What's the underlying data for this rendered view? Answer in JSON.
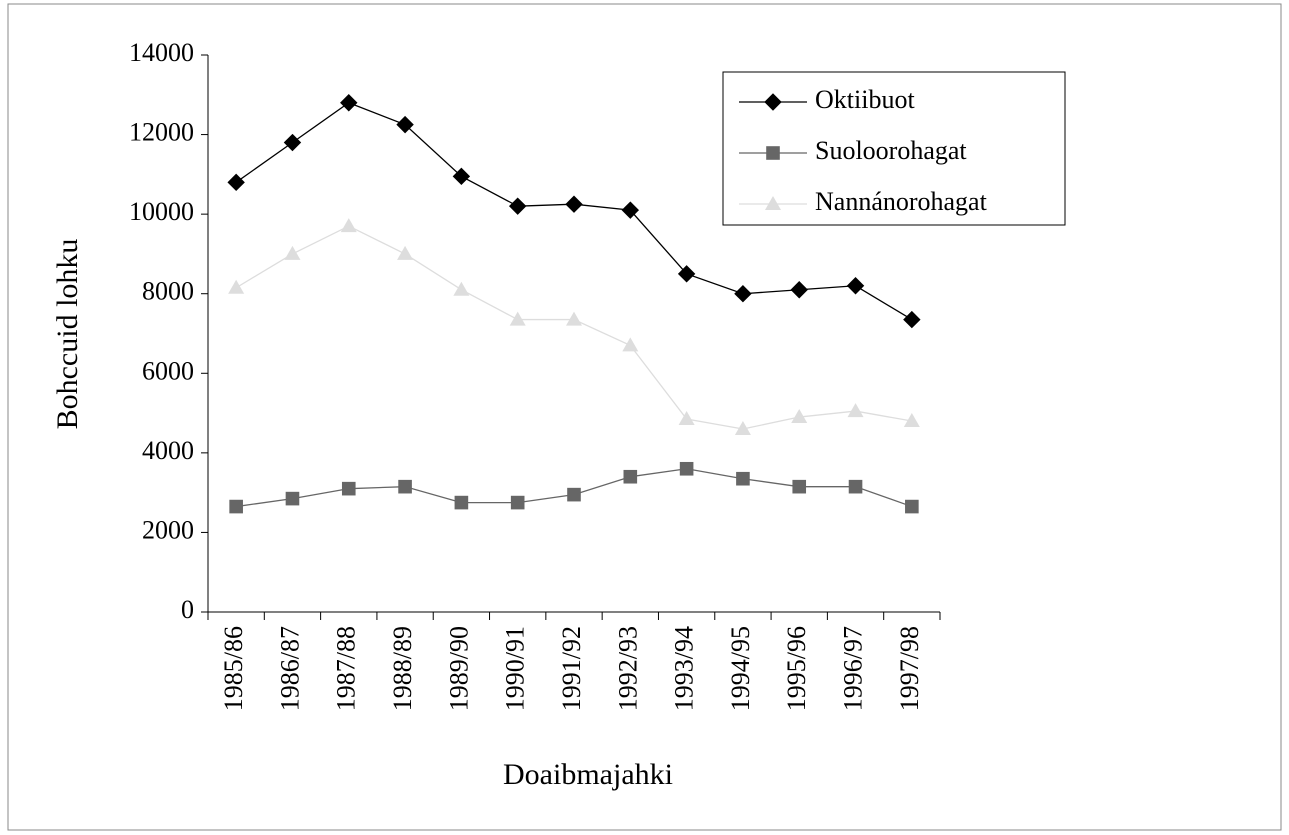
{
  "chart_data": {
    "type": "line",
    "x_label": "Doaibmajahki",
    "y_label": "Bohccuid lohku",
    "categories": [
      "1985/86",
      "1986/87",
      "1987/88",
      "1988/89",
      "1989/90",
      "1990/91",
      "1991/92",
      "1992/93",
      "1993/94",
      "1994/95",
      "1995/96",
      "1996/97",
      "1997/98"
    ],
    "series": [
      {
        "name": "Oktiibuot",
        "color": "#000000",
        "marker": "diamond",
        "values": [
          10800,
          11800,
          12800,
          12250,
          10950,
          10200,
          10250,
          10100,
          8500,
          8000,
          8100,
          8200,
          7350
        ]
      },
      {
        "name": "Suoloorohagat",
        "color": "#666666",
        "marker": "square",
        "values": [
          2650,
          2850,
          3100,
          3150,
          2750,
          2750,
          2950,
          3400,
          3600,
          3350,
          3150,
          3150,
          2650
        ]
      },
      {
        "name": "Nannánorohagat",
        "color": "#dddddd",
        "marker": "triangle",
        "values": [
          8150,
          9000,
          9700,
          9000,
          8100,
          7350,
          7350,
          6700,
          4850,
          4600,
          4900,
          5050,
          4800
        ]
      }
    ],
    "ylim": [
      0,
      14000
    ],
    "yticks": [
      0,
      2000,
      4000,
      6000,
      8000,
      10000,
      12000,
      14000
    ],
    "legend": "upper right"
  }
}
